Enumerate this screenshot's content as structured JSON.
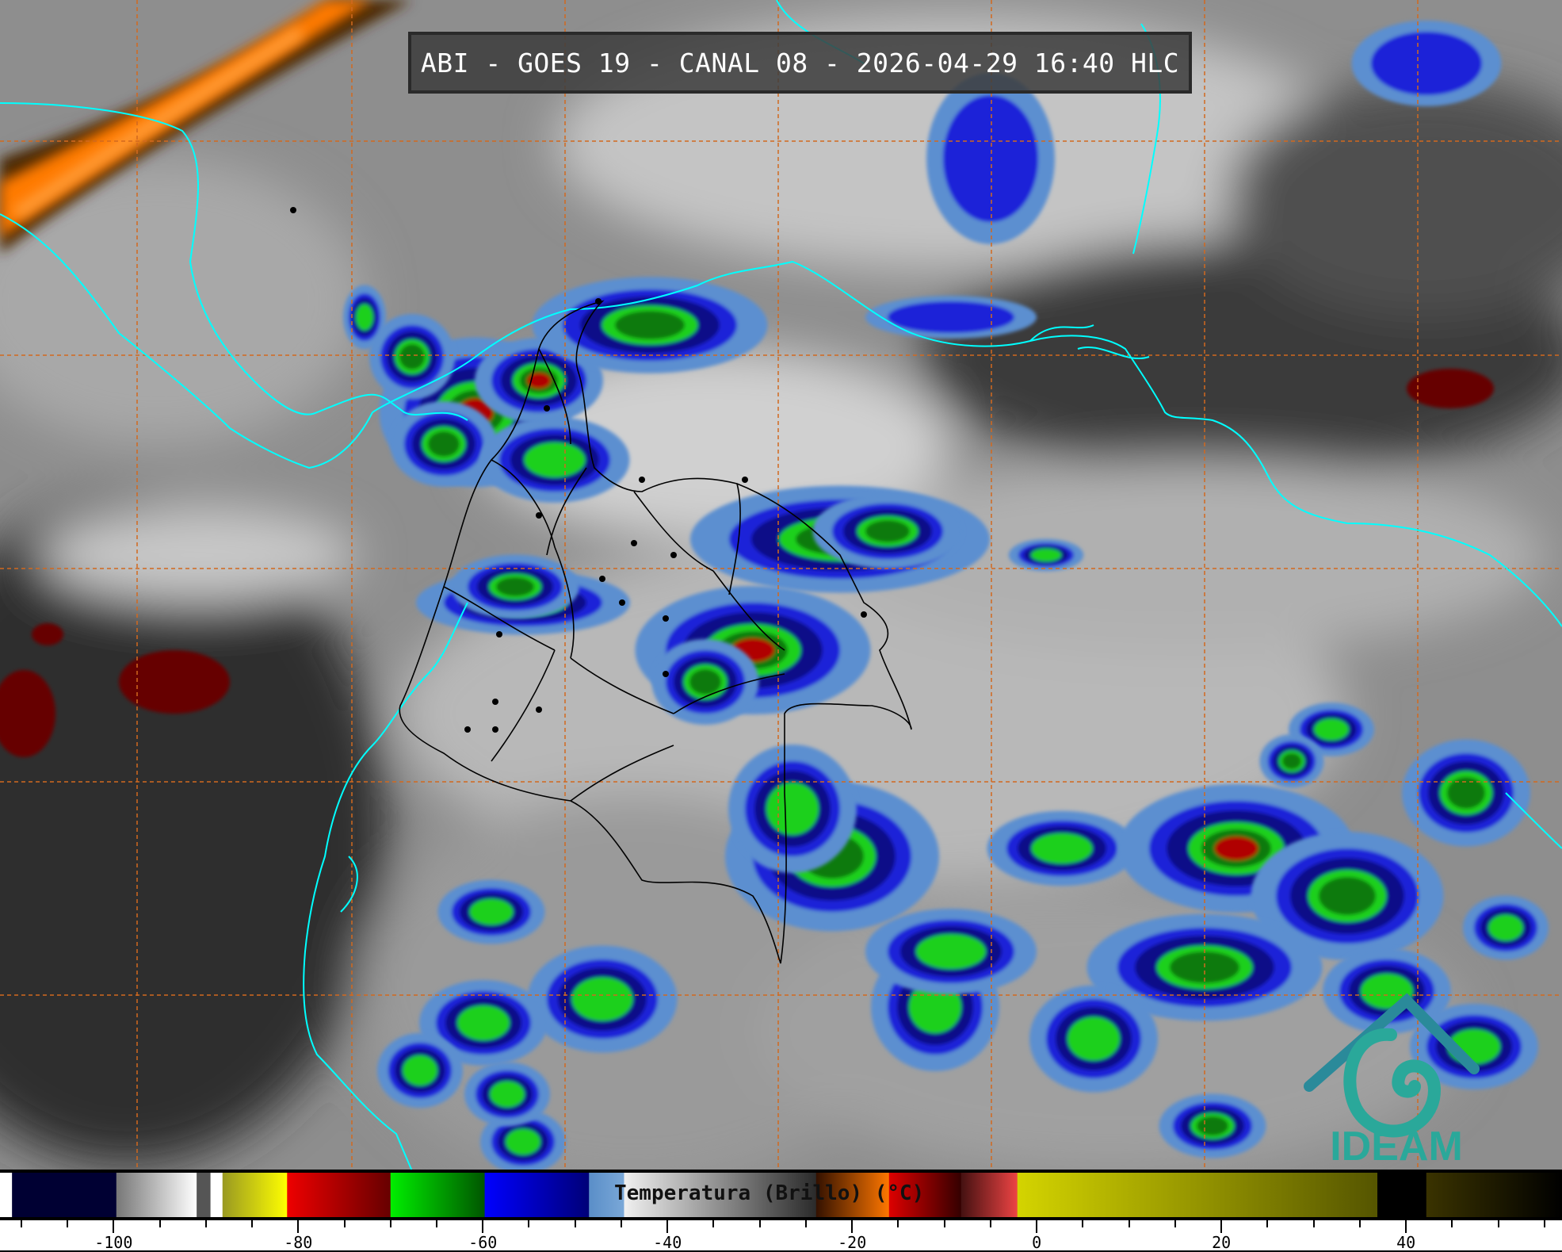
{
  "title": "ABI - GOES 19 - CANAL 08 - 2026-04-29 16:40 HLC",
  "logo": {
    "text": "IDEAM",
    "color": "#2aa89a"
  },
  "colors": {
    "coastline": "#00ffff",
    "grid": "#d2691e",
    "borders": "#000000"
  },
  "colorbar": {
    "label": "Temperatura (Brillo) (°C)",
    "range": [
      -112.3,
      56.9
    ],
    "tick_labels": [
      "-100",
      "-80",
      "-60",
      "-40",
      "-20",
      "0",
      "20",
      "40"
    ],
    "tick_values": [
      -100,
      -80,
      -60,
      -40,
      -20,
      0,
      20,
      40
    ],
    "minor_step": 5,
    "segments": [
      {
        "from": -112.3,
        "to": -111,
        "colors": [
          "#ffffff",
          "#ffffff"
        ]
      },
      {
        "from": -111,
        "to": -99.7,
        "colors": [
          "#000033",
          "#000033"
        ]
      },
      {
        "from": -99.7,
        "to": -91,
        "colors": [
          "#777777",
          "#ffffff"
        ]
      },
      {
        "from": -91,
        "to": -89.5,
        "colors": [
          "#555555",
          "#555555"
        ]
      },
      {
        "from": -89.5,
        "to": -88.2,
        "colors": [
          "#ffffff",
          "#ffffff"
        ]
      },
      {
        "from": -88.2,
        "to": -81.2,
        "colors": [
          "#999922",
          "#ffff00"
        ]
      },
      {
        "from": -81.2,
        "to": -70,
        "colors": [
          "#ee0000",
          "#660000"
        ]
      },
      {
        "from": -70,
        "to": -59.8,
        "colors": [
          "#00ee00",
          "#005500"
        ]
      },
      {
        "from": -59.8,
        "to": -48.5,
        "colors": [
          "#0000ff",
          "#000077"
        ]
      },
      {
        "from": -48.5,
        "to": -44.7,
        "colors": [
          "#5a8ec8",
          "#7aa8d8"
        ]
      },
      {
        "from": -44.7,
        "to": -23.9,
        "colors": [
          "#f0f0f0",
          "#2a2a2a"
        ]
      },
      {
        "from": -23.9,
        "to": -16,
        "colors": [
          "#331100",
          "#ff7700"
        ]
      },
      {
        "from": -16,
        "to": -8.2,
        "colors": [
          "#dd0000",
          "#330000"
        ]
      },
      {
        "from": -8.2,
        "to": -2.1,
        "colors": [
          "#441111",
          "#ee4444"
        ]
      },
      {
        "from": -2.1,
        "to": 36.9,
        "colors": [
          "#d4d400",
          "#555500"
        ]
      },
      {
        "from": 36.9,
        "to": 42.2,
        "colors": [
          "#000000",
          "#000000"
        ]
      },
      {
        "from": 42.2,
        "to": 56.9,
        "colors": [
          "#3a3300",
          "#000000"
        ]
      }
    ]
  }
}
